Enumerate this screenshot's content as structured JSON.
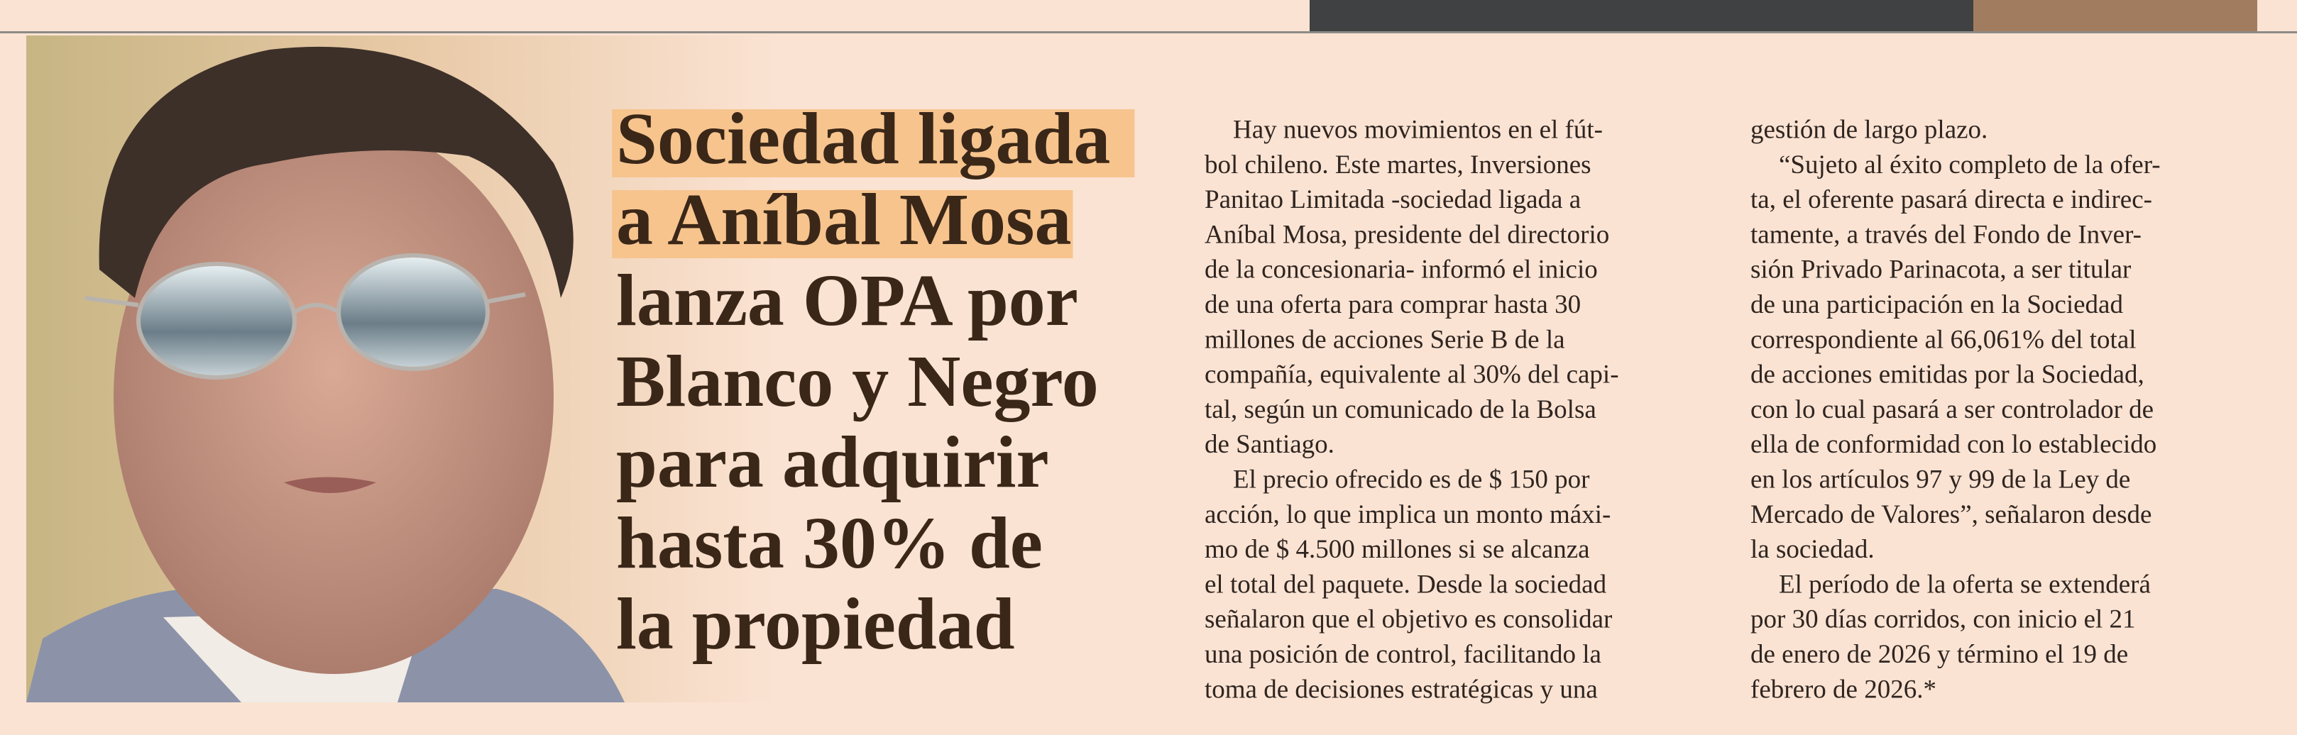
{
  "headline": {
    "lines": [
      "Sociedad ligada",
      "a Aníbal Mosa",
      "lanza OPA por",
      "Blanco y Negro",
      "para adquirir",
      "hasta 30% de",
      "la propiedad"
    ]
  },
  "body": {
    "columns": [
      {
        "paragraphs": [
          {
            "lines": [
              "Hay nuevos movimientos en el fút-",
              "bol chileno. Este martes, Inversiones",
              "Panitao Limitada -sociedad ligada a",
              "Aníbal Mosa, presidente del directorio",
              "de la concesionaria- informó el inicio",
              "de una oferta para comprar hasta 30",
              "millones de acciones Serie B de la",
              "compañía, equivalente al 30% del capi-",
              "tal, según un comunicado de la Bolsa",
              "de Santiago."
            ]
          },
          {
            "lines": [
              "El precio ofrecido es de $ 150 por",
              "acción, lo que implica un monto máxi-",
              "mo de $ 4.500 millones si se alcanza",
              "el total del paquete. Desde la sociedad",
              "señalaron que el objetivo es consolidar",
              "una posición de control, facilitando la",
              "toma de decisiones estratégicas y una"
            ]
          }
        ]
      },
      {
        "paragraphs": [
          {
            "lines": [
              "gestión de largo plazo."
            ]
          },
          {
            "lines": [
              "“Sujeto al éxito completo de la ofer-",
              "ta, el oferente pasará directa e indirec-",
              "tamente, a través del Fondo de Inver-",
              "sión Privado Parinacota, a ser titular",
              "de una participación en la Sociedad",
              "correspondiente al 66,061% del total",
              "de acciones emitidas por la Sociedad,",
              "con lo cual pasará a ser controlador de",
              "ella de conformidad con lo establecido",
              "en los artículos 97 y 99 de la Ley de",
              "Mercado de Valores”, señalaron desde",
              "la sociedad."
            ]
          },
          {
            "lines": [
              "El período de la oferta se extenderá",
              "por 30 días corridos, con inicio el 21",
              "de enero de 2026 y término el 19 de",
              "febrero de 2026.*"
            ]
          }
        ]
      }
    ]
  }
}
